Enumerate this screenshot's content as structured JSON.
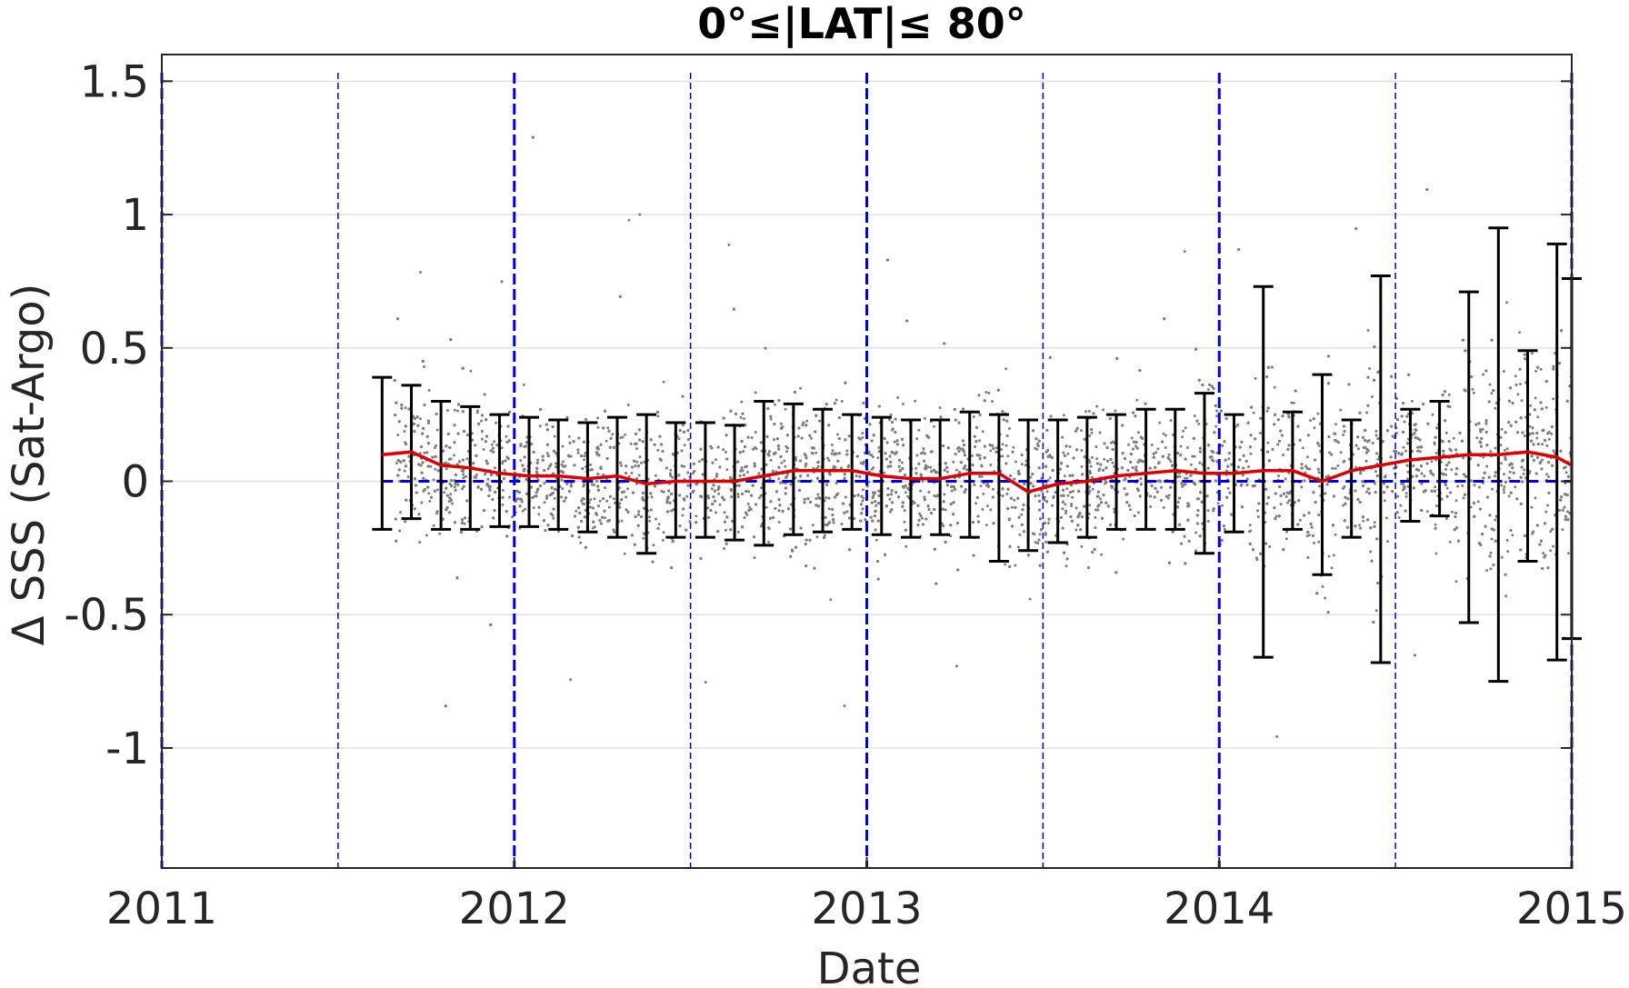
{
  "chart_data": {
    "type": "scatter",
    "title": "0°≤|LAT|≤ 80°",
    "xlabel": "Date",
    "ylabel": "Δ SSS (Sat-Argo)",
    "xlim": [
      2011.0,
      2015.0
    ],
    "ylim": [
      -1.45,
      1.6
    ],
    "x_ticks": [
      2011,
      2012,
      2013,
      2014,
      2015
    ],
    "x_tick_labels": [
      "2011",
      "2012",
      "2013",
      "2014",
      "2015"
    ],
    "y_ticks": [
      1.5,
      1,
      0.5,
      0,
      -0.5,
      -1
    ],
    "y_tick_labels": [
      "1.5",
      "1",
      "0.5",
      "0",
      "-0.5",
      "-1"
    ],
    "grid": true,
    "colors": {
      "scatter": "#808080",
      "mean_line": "#e00000",
      "error_bars": "#000000",
      "reference": "#0000e6",
      "grid": "#e0e0e0"
    },
    "year_lines": [
      2011.0,
      2012.0,
      2013.0,
      2014.0,
      2015.0
    ],
    "half_year_lines": [
      2011.5,
      2012.5,
      2013.5,
      2014.5
    ],
    "zero_line": 0,
    "scatter_cloud": {
      "x_range": [
        2011.66,
        2015.0
      ],
      "approx_center": 0.03,
      "approx_spread": 0.25
    },
    "monthly_stats": {
      "x": [
        2011.625,
        2011.708,
        2011.792,
        2011.875,
        2011.958,
        2012.042,
        2012.125,
        2012.208,
        2012.292,
        2012.375,
        2012.458,
        2012.542,
        2012.625,
        2012.708,
        2012.792,
        2012.875,
        2012.958,
        2013.042,
        2013.125,
        2013.208,
        2013.292,
        2013.375,
        2013.458,
        2013.542,
        2013.625,
        2013.708,
        2013.792,
        2013.875,
        2013.958,
        2014.042,
        2014.125,
        2014.208,
        2014.292,
        2014.375,
        2014.458,
        2014.542,
        2014.625,
        2014.708,
        2014.792,
        2014.875,
        2014.958,
        2015.0
      ],
      "mean": [
        0.1,
        0.11,
        0.06,
        0.05,
        0.03,
        0.02,
        0.02,
        0.01,
        0.02,
        -0.01,
        0.0,
        0.0,
        0.0,
        0.02,
        0.04,
        0.04,
        0.04,
        0.02,
        0.01,
        0.01,
        0.03,
        0.03,
        -0.04,
        -0.01,
        0.0,
        0.02,
        0.03,
        0.04,
        0.03,
        0.03,
        0.04,
        0.04,
        0.0,
        0.04,
        0.06,
        0.08,
        0.09,
        0.1,
        0.1,
        0.11,
        0.09,
        0.06
      ],
      "upper": [
        0.39,
        0.36,
        0.3,
        0.28,
        0.25,
        0.24,
        0.23,
        0.22,
        0.24,
        0.25,
        0.22,
        0.22,
        0.21,
        0.3,
        0.29,
        0.27,
        0.25,
        0.24,
        0.23,
        0.23,
        0.26,
        0.25,
        0.23,
        0.23,
        0.24,
        0.25,
        0.27,
        0.27,
        0.33,
        0.25,
        0.73,
        0.26,
        0.4,
        0.23,
        0.77,
        0.27,
        0.3,
        0.71,
        0.95,
        0.49,
        0.89,
        0.76
      ],
      "lower": [
        -0.18,
        -0.14,
        -0.18,
        -0.18,
        -0.17,
        -0.17,
        -0.18,
        -0.19,
        -0.21,
        -0.27,
        -0.21,
        -0.21,
        -0.22,
        -0.24,
        -0.2,
        -0.19,
        -0.18,
        -0.2,
        -0.21,
        -0.2,
        -0.21,
        -0.3,
        -0.26,
        -0.23,
        -0.21,
        -0.18,
        -0.18,
        -0.18,
        -0.27,
        -0.19,
        -0.66,
        -0.18,
        -0.35,
        -0.21,
        -0.68,
        -0.15,
        -0.13,
        -0.53,
        -0.75,
        -0.3,
        -0.67,
        -0.59
      ]
    }
  }
}
